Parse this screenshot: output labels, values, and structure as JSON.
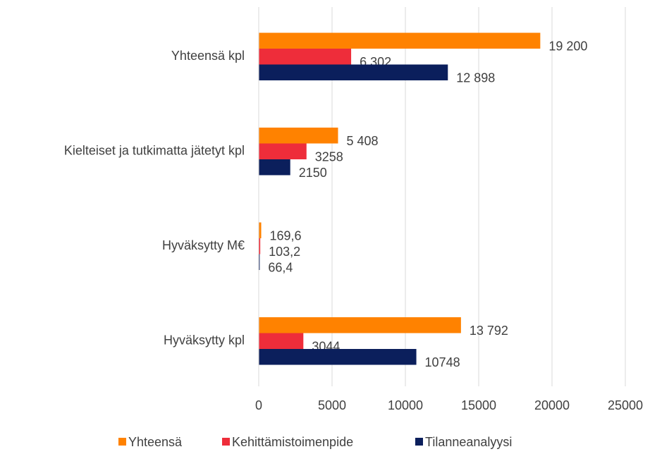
{
  "chart_data": {
    "type": "bar",
    "orientation": "horizontal",
    "categories": [
      "Yhteensä kpl",
      "Kielteiset ja tutkimatta jätetyt kpl",
      "Hyväksytty M€",
      "Hyväksytty kpl"
    ],
    "series": [
      {
        "name": "Yhteensä",
        "color": "#ff8200",
        "values": [
          19200,
          5408,
          169.6,
          13792
        ],
        "value_labels": [
          "19 200",
          "5 408",
          "169,6",
          "13 792"
        ]
      },
      {
        "name": "Kehittämistoimenpide",
        "color": "#ee2d3a",
        "values": [
          6302,
          3258,
          103.2,
          3044
        ],
        "value_labels": [
          "6 302",
          "3258",
          "103,2",
          "3044"
        ]
      },
      {
        "name": "Tilanneanalyysi",
        "color": "#0b1f5c",
        "values": [
          12898,
          2150,
          66.4,
          10748
        ],
        "value_labels": [
          "12 898",
          "2150",
          "66,4",
          "10748"
        ]
      }
    ],
    "xlim": [
      0,
      25000
    ],
    "xticks": [
      0,
      5000,
      10000,
      15000,
      20000,
      25000
    ],
    "grid": true,
    "legend": "bottom"
  }
}
